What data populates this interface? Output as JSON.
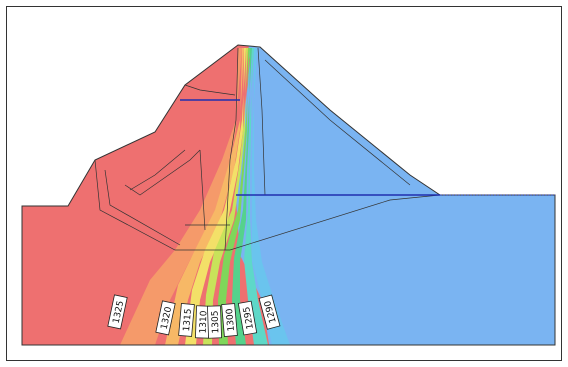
{
  "colors": {
    "upstream": "#ee7070",
    "downstream": "#7ab4f2",
    "structure_line": "#333333",
    "phreatic": "#1f2fb0",
    "grades": [
      "#ee7070",
      "#f59a6a",
      "#f7b866",
      "#f3e068",
      "#c8e35a",
      "#7fd65a",
      "#55d28c",
      "#5ed8c8",
      "#6ac4ee"
    ]
  },
  "contours": [
    {
      "label": "1325"
    },
    {
      "label": "1320"
    },
    {
      "label": "1315"
    },
    {
      "label": "1310"
    },
    {
      "label": "1305"
    },
    {
      "label": "1300"
    },
    {
      "label": "1295"
    },
    {
      "label": "1290"
    }
  ]
}
